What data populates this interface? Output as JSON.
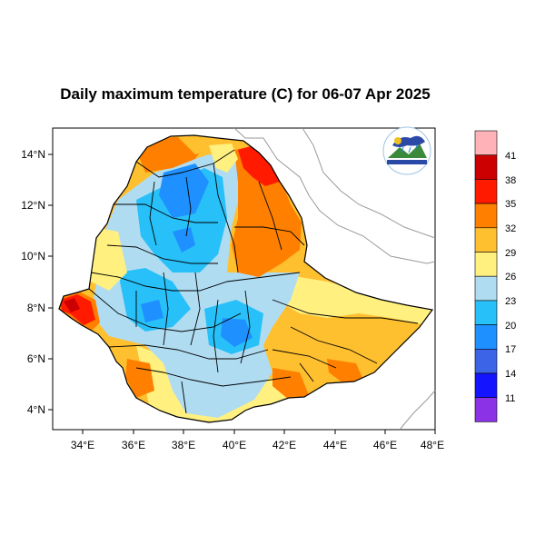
{
  "title": "Daily maximum temperature (C) for 06-07 Apr 2025",
  "logo": {
    "text_top": "የኢትዮጵያ ሚቲዎሮሎጂ ኢንስቲትዩት",
    "text_bottom": "Ethiopian Meteorological Institute"
  },
  "axes": {
    "x_ticks": [
      "34°E",
      "36°E",
      "38°E",
      "40°E",
      "42°E",
      "44°E",
      "46°E",
      "48°E"
    ],
    "y_ticks": [
      "14°N",
      "12°N",
      "10°N",
      "8°N",
      "6°N",
      "4°N"
    ],
    "xlim": [
      32.9,
      48.2
    ],
    "ylim": [
      3.2,
      15.0
    ]
  },
  "colorbar": {
    "levels": [
      "41",
      "38",
      "35",
      "32",
      "29",
      "26",
      "23",
      "20",
      "17",
      "14",
      "11"
    ],
    "colors": [
      "#ffb3b8",
      "#cc0000",
      "#ff1a00",
      "#ff8000",
      "#ffc030",
      "#fff080",
      "#b0dcf2",
      "#28c0f8",
      "#1e90ff",
      "#3c64e6",
      "#1414ff",
      "#8c32e6"
    ]
  }
}
